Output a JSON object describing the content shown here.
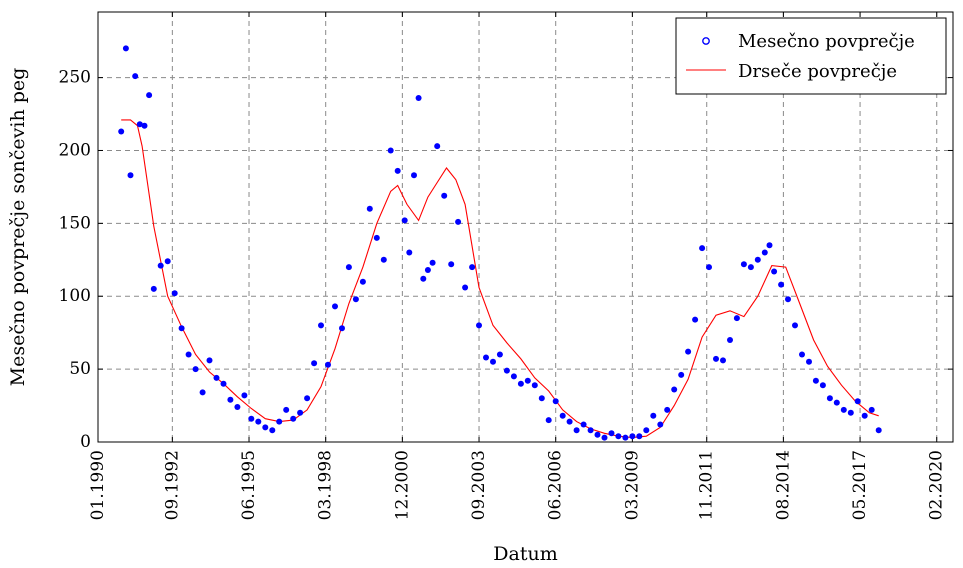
{
  "chart_data": {
    "type": "scatter",
    "xlabel": "Datum",
    "ylabel": "Mesečno povprečje sončevih peg",
    "xticks": [
      "01.1990",
      "09.1992",
      "06.1995",
      "03.1998",
      "12.2000",
      "09.2003",
      "06.2006",
      "03.2009",
      "11.2011",
      "08.2014",
      "05.2017",
      "02.2020"
    ],
    "yticks": [
      0,
      50,
      100,
      150,
      200,
      250
    ],
    "xlim": [
      "1990-01",
      "2020-09"
    ],
    "ylim": [
      0,
      295
    ],
    "grid": true,
    "legend_position": "top-right",
    "colors": {
      "points": "#0000ff",
      "line": "#ff0000"
    },
    "series": [
      {
        "name": "Mesečno povprečje",
        "kind": "scatter",
        "x": [
          "1990-11",
          "1991-01",
          "1991-03",
          "1991-05",
          "1991-07",
          "1991-09",
          "1991-11",
          "1992-01",
          "1992-04",
          "1992-07",
          "1992-10",
          "1993-01",
          "1993-04",
          "1993-07",
          "1993-10",
          "1994-01",
          "1994-04",
          "1994-07",
          "1994-10",
          "1995-01",
          "1995-04",
          "1995-07",
          "1995-10",
          "1996-01",
          "1996-04",
          "1996-07",
          "1996-10",
          "1997-01",
          "1997-04",
          "1997-07",
          "1997-10",
          "1998-01",
          "1998-04",
          "1998-07",
          "1998-10",
          "1999-01",
          "1999-04",
          "1999-07",
          "1999-10",
          "2000-01",
          "2000-04",
          "2000-07",
          "2000-10",
          "2001-01",
          "2001-03",
          "2001-05",
          "2001-07",
          "2001-09",
          "2001-11",
          "2002-01",
          "2002-03",
          "2002-06",
          "2002-09",
          "2002-12",
          "2003-03",
          "2003-06",
          "2003-09",
          "2003-12",
          "2004-03",
          "2004-06",
          "2004-09",
          "2004-12",
          "2005-03",
          "2005-06",
          "2005-09",
          "2005-12",
          "2006-03",
          "2006-06",
          "2006-09",
          "2006-12",
          "2007-03",
          "2007-06",
          "2007-09",
          "2007-12",
          "2008-03",
          "2008-06",
          "2008-09",
          "2008-12",
          "2009-03",
          "2009-06",
          "2009-09",
          "2009-12",
          "2010-03",
          "2010-06",
          "2010-09",
          "2010-12",
          "2011-03",
          "2011-06",
          "2011-09",
          "2011-12",
          "2012-03",
          "2012-06",
          "2012-09",
          "2012-12",
          "2013-03",
          "2013-06",
          "2013-09",
          "2013-12",
          "2014-02",
          "2014-04",
          "2014-07",
          "2014-10",
          "2015-01",
          "2015-04",
          "2015-07",
          "2015-10",
          "2016-01",
          "2016-04",
          "2016-07",
          "2016-10",
          "2017-01",
          "2017-04",
          "2017-07",
          "2017-10",
          "2018-01"
        ],
        "y": [
          213,
          270,
          183,
          251,
          218,
          217,
          238,
          105,
          121,
          124,
          102,
          78,
          60,
          50,
          34,
          56,
          44,
          40,
          29,
          24,
          32,
          16,
          14,
          10,
          8,
          14,
          22,
          16,
          20,
          30,
          54,
          80,
          53,
          93,
          78,
          120,
          98,
          110,
          160,
          140,
          125,
          200,
          186,
          152,
          130,
          183,
          236,
          112,
          118,
          123,
          203,
          169,
          122,
          151,
          106,
          120,
          80,
          58,
          55,
          60,
          49,
          45,
          40,
          42,
          39,
          30,
          15,
          28,
          18,
          14,
          8,
          12,
          8,
          5,
          3,
          6,
          4,
          3,
          4,
          4,
          8,
          18,
          12,
          22,
          36,
          46,
          62,
          84,
          133,
          120,
          57,
          56,
          70,
          85,
          122,
          120,
          125,
          130,
          135,
          117,
          108,
          98,
          80,
          60,
          55,
          42,
          39,
          30,
          27,
          22,
          20,
          28,
          18,
          22,
          8
        ]
      },
      {
        "name": "Drseče povprečje",
        "kind": "line",
        "x": [
          "1990-11",
          "1991-03",
          "1991-06",
          "1991-08",
          "1992-01",
          "1992-07",
          "1993-01",
          "1993-07",
          "1994-01",
          "1994-07",
          "1995-01",
          "1995-07",
          "1996-01",
          "1996-07",
          "1997-01",
          "1997-07",
          "1998-01",
          "1998-07",
          "1999-01",
          "1999-07",
          "2000-01",
          "2000-07",
          "2000-10",
          "2001-02",
          "2001-07",
          "2001-11",
          "2002-03",
          "2002-07",
          "2002-11",
          "2003-03",
          "2003-09",
          "2004-03",
          "2004-09",
          "2005-03",
          "2005-09",
          "2006-03",
          "2006-09",
          "2007-03",
          "2007-09",
          "2008-03",
          "2008-09",
          "2009-03",
          "2009-09",
          "2010-03",
          "2010-09",
          "2011-03",
          "2011-09",
          "2012-03",
          "2012-09",
          "2013-03",
          "2013-09",
          "2014-03",
          "2014-09",
          "2015-03",
          "2015-09",
          "2016-03",
          "2016-09",
          "2017-03",
          "2017-09",
          "2018-01"
        ],
        "y": [
          221,
          221,
          217,
          203,
          148,
          100,
          79,
          60,
          48,
          40,
          31,
          23,
          16,
          14,
          15,
          22,
          38,
          64,
          95,
          120,
          150,
          172,
          176,
          163,
          152,
          168,
          178,
          188,
          180,
          163,
          106,
          80,
          68,
          57,
          44,
          35,
          22,
          14,
          9,
          6,
          4,
          3,
          4,
          10,
          25,
          43,
          72,
          87,
          90,
          86,
          100,
          121,
          120,
          95,
          70,
          52,
          39,
          28,
          20,
          18
        ]
      }
    ]
  }
}
